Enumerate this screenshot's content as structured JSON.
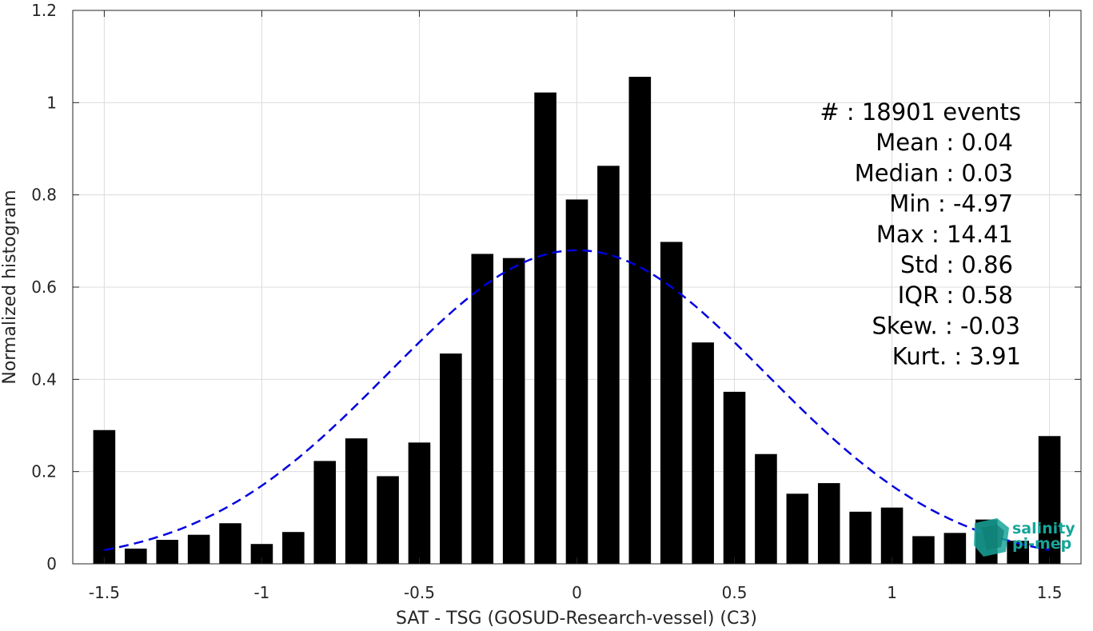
{
  "chart_data": {
    "type": "bar",
    "xlabel": "SAT - TSG (GOSUD-Research-vessel) (C3)",
    "ylabel": "Normalized histogram",
    "xlim": [
      -1.6,
      1.6
    ],
    "ylim": [
      0,
      1.2
    ],
    "xticks": [
      -1.5,
      -1,
      -0.5,
      0,
      0.5,
      1,
      1.5
    ],
    "xtick_labels": [
      "-1.5",
      "-1",
      "-0.5",
      "0",
      "0.5",
      "1",
      "1.5"
    ],
    "yticks": [
      0,
      0.2,
      0.4,
      0.6,
      0.8,
      1,
      1.2
    ],
    "ytick_labels": [
      "0",
      "0.2",
      "0.4",
      "0.6",
      "0.8",
      "1",
      "1.2"
    ],
    "grid": true,
    "bar_color": "#000000",
    "bins": [
      -1.5,
      -1.4,
      -1.3,
      -1.2,
      -1.1,
      -1.0,
      -0.9,
      -0.8,
      -0.7,
      -0.6,
      -0.5,
      -0.4,
      -0.3,
      -0.2,
      -0.1,
      0.0,
      0.1,
      0.2,
      0.3,
      0.4,
      0.5,
      0.6,
      0.7,
      0.8,
      0.9,
      1.0,
      1.1,
      1.2,
      1.3,
      1.4,
      1.5
    ],
    "values": [
      0.29,
      0.033,
      0.052,
      0.063,
      0.088,
      0.043,
      0.069,
      0.223,
      0.272,
      0.19,
      0.263,
      0.456,
      0.672,
      0.663,
      1.022,
      0.79,
      0.863,
      1.056,
      0.698,
      0.48,
      0.373,
      0.238,
      0.152,
      0.175,
      0.113,
      0.122,
      0.06,
      0.067,
      0.096,
      0.05,
      0.277
    ],
    "fit_curve": {
      "type": "gaussian",
      "color": "#0000e0",
      "style": "dashed",
      "mean": 0.0,
      "peak": 0.68,
      "x_range": [
        -1.5,
        1.5
      ],
      "sigma": 0.6
    },
    "stats": [
      "#  : 18901 events",
      "Mean : 0.04",
      "Median : 0.03",
      "Min : -4.97",
      "Max : 14.41",
      "Std : 0.86",
      "IQR : 0.58",
      "Skew. : -0.03",
      "Kurt. : 3.91"
    ]
  },
  "logo": {
    "line1": "salinity",
    "line2": "pi-mep",
    "color": "#17a59a"
  }
}
